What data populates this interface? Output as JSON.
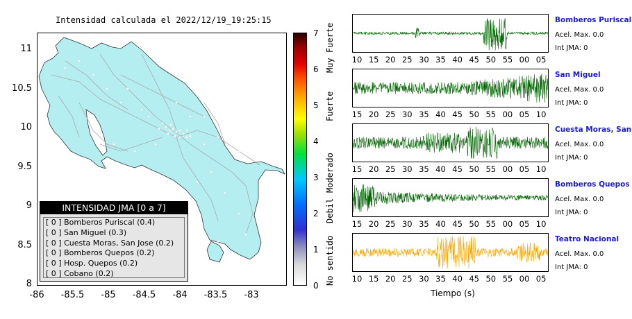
{
  "map": {
    "title": "Intensidad calculada el 2022/12/19_19:25:15",
    "y_ticks": [
      "11",
      "10.5",
      "10",
      "9.5",
      "9",
      "8.5",
      "8"
    ],
    "x_ticks": [
      "-86",
      "-85.5",
      "-85",
      "-84.5",
      "-84",
      "-83.5",
      "-83"
    ],
    "colors": {
      "land": "#b4eef0",
      "ocean": "#ffffff",
      "roads": "#a9a9a9",
      "stations": "#ffffff"
    },
    "legend": {
      "header": "INTENSIDAD JMA [0 a 7]",
      "items": [
        "[ 0 ]  Bomberos Puriscal (0.4)",
        "[ 0 ]  San Miguel (0.3)",
        "[ 0 ]  Cuesta Moras, San Jose (0.2)",
        "[ 0 ]  Bomberos Quepos (0.2)",
        "[ 0 ]  Hosp. Quepos (0.2)",
        "[ 0 ]  Cobano (0.2)"
      ]
    }
  },
  "colorbar": {
    "ticks": [
      "7",
      "6",
      "5",
      "4",
      "3",
      "2",
      "1",
      "0"
    ],
    "labels": [
      "Muy Fuerte",
      "Fuerte",
      "Moderado",
      "Debil",
      "No sentido"
    ]
  },
  "waveforms": {
    "xlabel": "Tiempo (s)",
    "panels": [
      {
        "station": "Bomberos Puriscal",
        "acel": "Acel. Max. 0.0",
        "int": "Int JMA: 0",
        "color": "#006400",
        "ticks": [
          "10",
          "15",
          "20",
          "25",
          "30",
          "35",
          "40",
          "45",
          "50",
          "55",
          "00",
          "05"
        ]
      },
      {
        "station": "San Miguel",
        "acel": "Acel. Max. 0.0",
        "int": "Int JMA: 0",
        "color": "#006400",
        "ticks": [
          "15",
          "20",
          "25",
          "30",
          "35",
          "40",
          "45",
          "50",
          "55",
          "00",
          "05",
          "10"
        ]
      },
      {
        "station": "Cuesta Moras, San Jose",
        "acel": "Acel. Max. 0.0",
        "int": "Int JMA: 0",
        "color": "#006400",
        "ticks": [
          "15",
          "20",
          "25",
          "30",
          "35",
          "40",
          "45",
          "50",
          "55",
          "00",
          "05",
          "10"
        ]
      },
      {
        "station": "Bomberos Quepos",
        "acel": "Acel. Max. 0.0",
        "int": "Int JMA: 0",
        "color": "#006400",
        "ticks": [
          "15",
          "20",
          "25",
          "30",
          "35",
          "40",
          "45",
          "50",
          "55",
          "00",
          "05",
          "10"
        ]
      },
      {
        "station": "Teatro Nacional",
        "acel": "Acel. Max. 0.0",
        "int": "Int JMA: 0",
        "color": "#ffa500",
        "ticks": [
          "10",
          "15",
          "20",
          "25",
          "30",
          "35",
          "40",
          "45",
          "50",
          "55",
          "00",
          "05"
        ]
      }
    ]
  },
  "chart_data": [
    {
      "type": "heatmap",
      "title": "Intensidad calculada el 2022/12/19_19:25:15",
      "xlim": [
        -86,
        -82.5
      ],
      "ylim": [
        8,
        11.3
      ],
      "colorbar_range": [
        0,
        7
      ],
      "stations": [
        {
          "name": "Bomberos Puriscal",
          "jma": 0,
          "value": 0.4
        },
        {
          "name": "San Miguel",
          "jma": 0,
          "value": 0.3
        },
        {
          "name": "Cuesta Moras, San Jose",
          "jma": 0,
          "value": 0.2
        },
        {
          "name": "Bomberos Quepos",
          "jma": 0,
          "value": 0.2
        },
        {
          "name": "Hosp. Quepos",
          "jma": 0,
          "value": 0.2
        },
        {
          "name": "Cobano",
          "jma": 0,
          "value": 0.2
        }
      ]
    },
    {
      "type": "line",
      "xlabel": "Tiempo (s)",
      "series": [
        {
          "name": "Bomberos Puriscal",
          "acel_max": 0.0,
          "int_jma": 0
        },
        {
          "name": "San Miguel",
          "acel_max": 0.0,
          "int_jma": 0
        },
        {
          "name": "Cuesta Moras, San Jose",
          "acel_max": 0.0,
          "int_jma": 0
        },
        {
          "name": "Bomberos Quepos",
          "acel_max": 0.0,
          "int_jma": 0
        },
        {
          "name": "Teatro Nacional",
          "acel_max": 0.0,
          "int_jma": 0
        }
      ]
    }
  ]
}
